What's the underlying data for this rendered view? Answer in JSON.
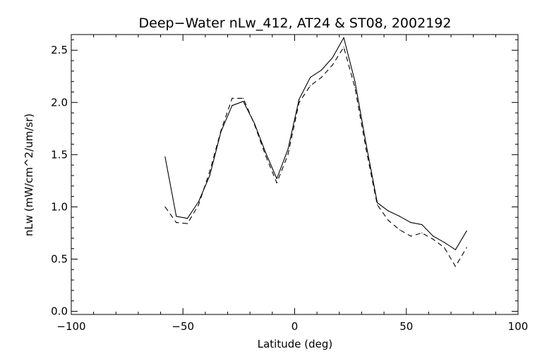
{
  "chart_data": {
    "type": "line",
    "title": "Deep−Water nLw_412, AT24 & ST08, 2002192",
    "xlabel": "Latitude (deg)",
    "ylabel": "nLw (mW/cm^2/um/sr)",
    "xlim": [
      -100,
      100
    ],
    "ylim": [
      -0.03,
      2.65
    ],
    "x_ticks": [
      "−100",
      "−50",
      "0",
      "50",
      "100"
    ],
    "x_tick_values": [
      -100,
      -50,
      0,
      50,
      100
    ],
    "y_ticks": [
      "0.0",
      "0.5",
      "1.0",
      "1.5",
      "2.0",
      "2.5"
    ],
    "y_tick_values": [
      0,
      0.5,
      1.0,
      1.5,
      2.0,
      2.5
    ],
    "grid": false,
    "series": [
      {
        "style": "solid",
        "color": "#000000",
        "points": [
          [
            -58,
            1.48
          ],
          [
            -53,
            0.91
          ],
          [
            -48,
            0.89
          ],
          [
            -43,
            1.05
          ],
          [
            -38,
            1.3
          ],
          [
            -33,
            1.72
          ],
          [
            -28,
            1.97
          ],
          [
            -23,
            2.01
          ],
          [
            -18,
            1.8
          ],
          [
            -13,
            1.52
          ],
          [
            -8,
            1.27
          ],
          [
            -3,
            1.55
          ],
          [
            2,
            2.03
          ],
          [
            7,
            2.24
          ],
          [
            12,
            2.31
          ],
          [
            17,
            2.43
          ],
          [
            22,
            2.62
          ],
          [
            27,
            2.2
          ],
          [
            32,
            1.6
          ],
          [
            37,
            1.04
          ],
          [
            42,
            0.96
          ],
          [
            47,
            0.91
          ],
          [
            52,
            0.85
          ],
          [
            57,
            0.83
          ],
          [
            62,
            0.72
          ],
          [
            67,
            0.66
          ],
          [
            72,
            0.59
          ],
          [
            77,
            0.77
          ]
        ]
      },
      {
        "style": "dashed",
        "color": "#000000",
        "points": [
          [
            -58,
            1.0
          ],
          [
            -53,
            0.85
          ],
          [
            -48,
            0.84
          ],
          [
            -43,
            1.02
          ],
          [
            -38,
            1.34
          ],
          [
            -33,
            1.73
          ],
          [
            -28,
            2.04
          ],
          [
            -23,
            2.04
          ],
          [
            -18,
            1.79
          ],
          [
            -13,
            1.49
          ],
          [
            -8,
            1.23
          ],
          [
            -3,
            1.5
          ],
          [
            2,
            2.0
          ],
          [
            7,
            2.16
          ],
          [
            12,
            2.24
          ],
          [
            17,
            2.36
          ],
          [
            22,
            2.53
          ],
          [
            27,
            2.14
          ],
          [
            32,
            1.55
          ],
          [
            37,
            1.02
          ],
          [
            42,
            0.87
          ],
          [
            47,
            0.78
          ],
          [
            52,
            0.72
          ],
          [
            57,
            0.75
          ],
          [
            62,
            0.69
          ],
          [
            67,
            0.61
          ],
          [
            72,
            0.43
          ],
          [
            77,
            0.61
          ]
        ]
      }
    ]
  }
}
